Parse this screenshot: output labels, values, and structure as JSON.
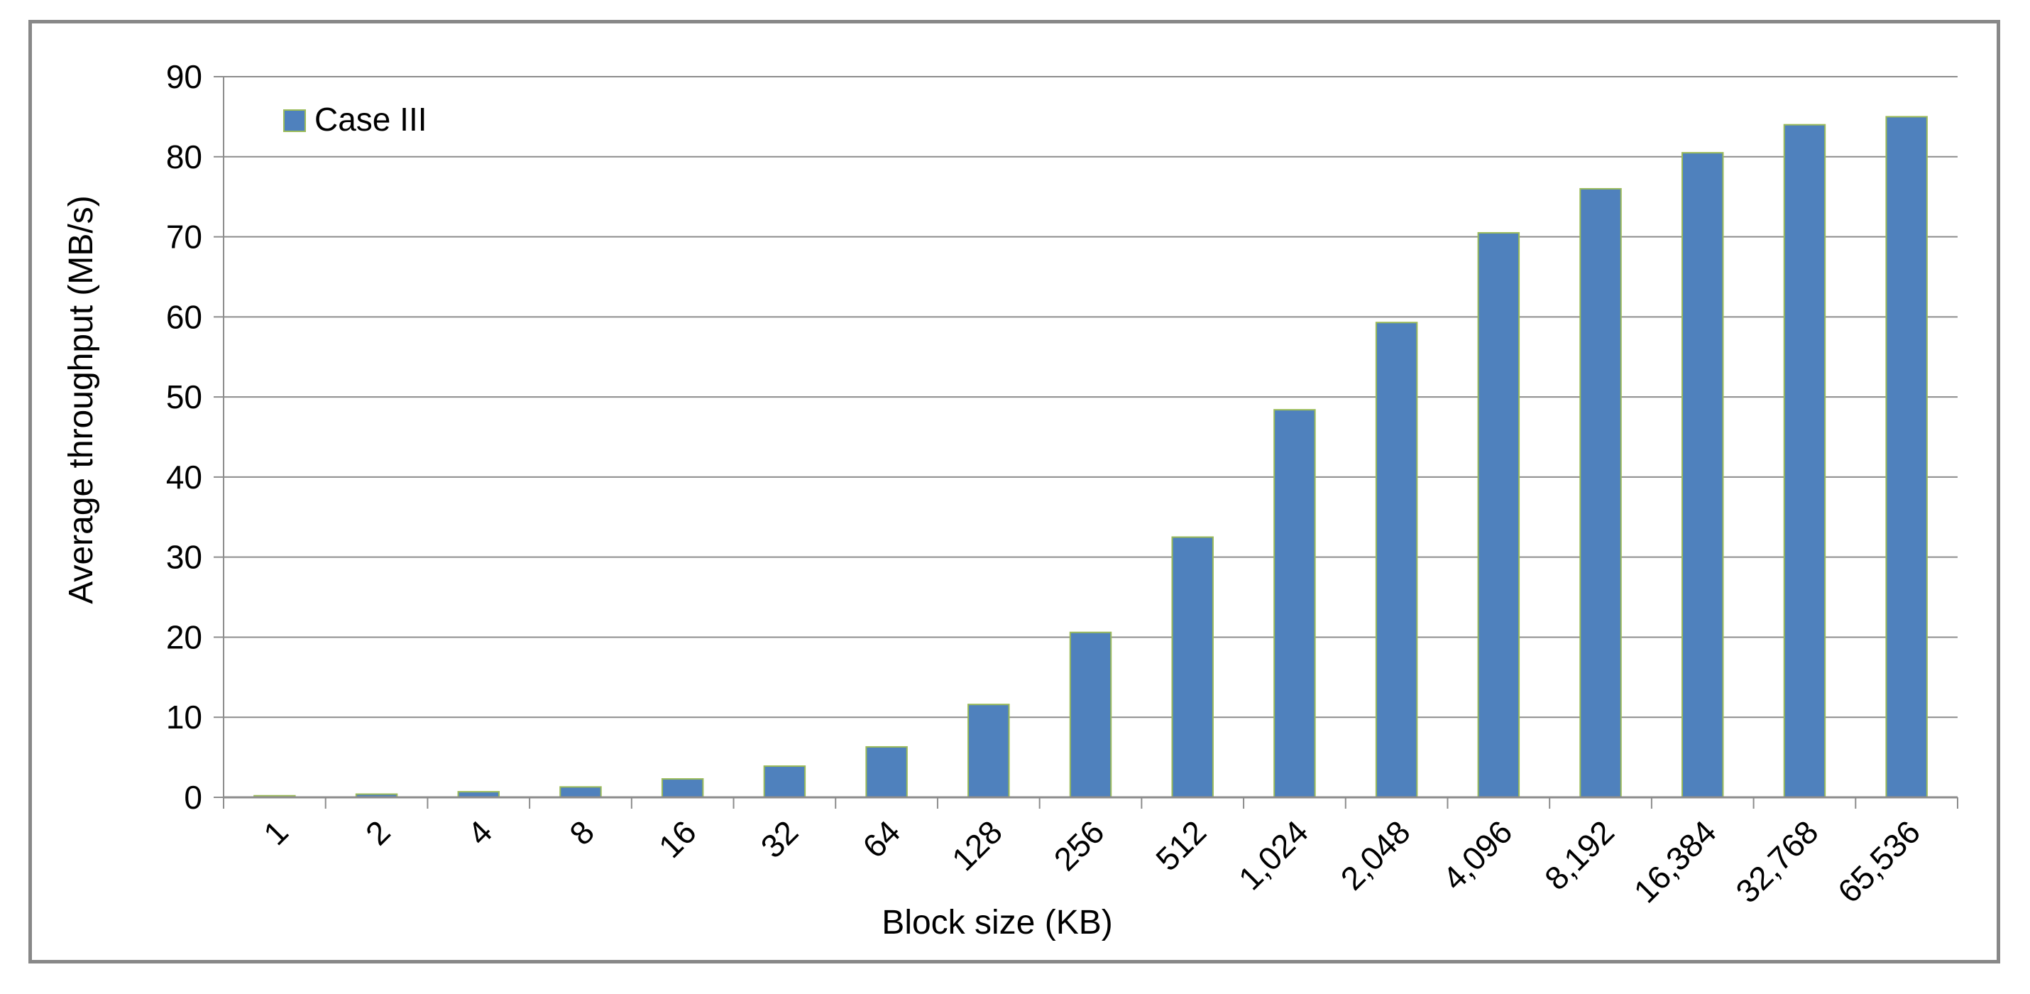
{
  "chart_data": {
    "type": "bar",
    "categories": [
      "1",
      "2",
      "4",
      "8",
      "16",
      "32",
      "64",
      "128",
      "256",
      "512",
      "1,024",
      "2,048",
      "4,096",
      "8,192",
      "16,384",
      "32,768",
      "65,536"
    ],
    "series": [
      {
        "name": "Case III",
        "values": [
          0.2,
          0.4,
          0.7,
          1.3,
          2.3,
          3.9,
          6.3,
          11.6,
          20.6,
          32.5,
          48.4,
          59.3,
          70.5,
          76.0,
          80.5,
          84.0,
          85.0
        ]
      }
    ],
    "xlabel": "Block size (KB)",
    "ylabel": "Average throughput (MB/s)",
    "ylim": [
      0,
      90
    ],
    "yticks": [
      0,
      10,
      20,
      30,
      40,
      50,
      60,
      70,
      80,
      90
    ],
    "grid": true,
    "legend_position": "top-left",
    "colors": {
      "bar_fill": "#4f81bd",
      "bar_edge": "#9bbb59",
      "gridline": "#8c8c8c",
      "axis": "#8c8c8c"
    }
  }
}
